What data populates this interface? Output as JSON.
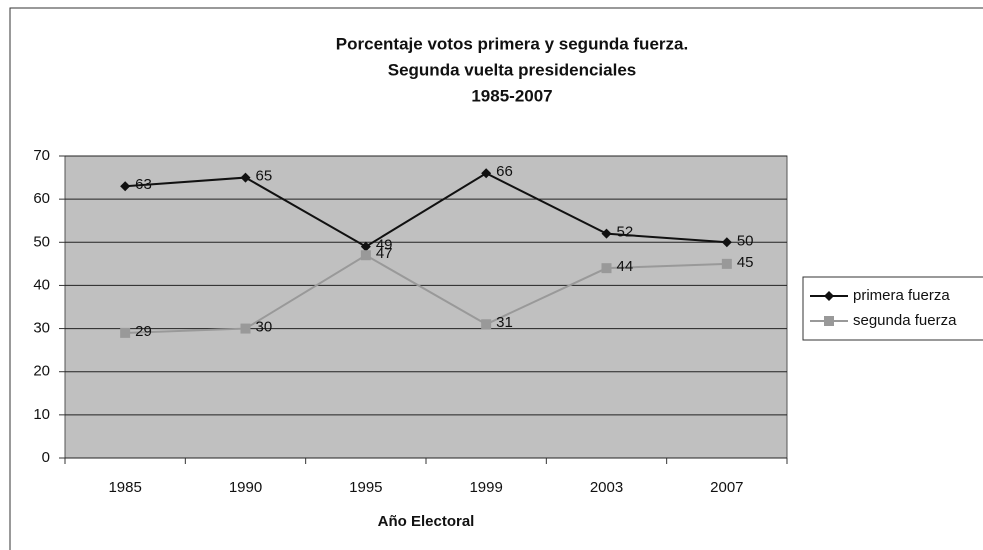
{
  "chart_data": {
    "type": "line",
    "title": [
      "Porcentaje votos primera y segunda fuerza.",
      "Segunda vuelta presidenciales",
      "1985-2007"
    ],
    "x_label": "Año Electoral",
    "categories": [
      "1985",
      "1990",
      "1995",
      "1999",
      "2003",
      "2007"
    ],
    "series": [
      {
        "name": "primera fuerza",
        "color": "#111111",
        "marker": "diamond",
        "values": [
          63,
          65,
          49,
          66,
          52,
          50
        ]
      },
      {
        "name": "segunda fuerza",
        "color": "#999999",
        "marker": "square",
        "values": [
          29,
          30,
          47,
          31,
          44,
          45
        ]
      }
    ],
    "ylim": [
      0,
      70
    ],
    "yticks": [
      0,
      10,
      20,
      30,
      40,
      50,
      60,
      70
    ],
    "grid": true,
    "legend": "right"
  }
}
